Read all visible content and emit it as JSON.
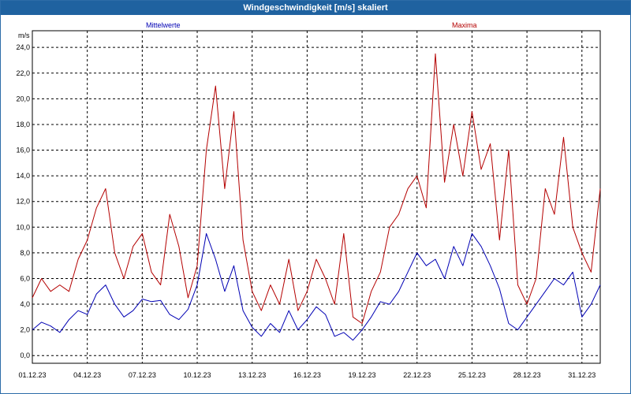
{
  "window": {
    "title": "Windgeschwindigkeit [m/s] skaliert"
  },
  "chart_data": {
    "type": "line",
    "title": "Windgeschwindigkeit [m/s] skaliert",
    "ylabel": "m/s",
    "xlabel": "",
    "ylim": [
      -0.6,
      25.3
    ],
    "xlim": [
      0,
      31
    ],
    "grid": true,
    "y_ticks": [
      "0,0",
      "2,0",
      "4,0",
      "6,0",
      "8,0",
      "10,0",
      "12,0",
      "14,0",
      "16,0",
      "18,0",
      "20,0",
      "22,0",
      "24,0"
    ],
    "y_tick_values": [
      0,
      2,
      4,
      6,
      8,
      10,
      12,
      14,
      16,
      18,
      20,
      22,
      24
    ],
    "x_ticks": [
      "01.12.23",
      "04.12.23",
      "07.12.23",
      "10.12.23",
      "13.12.23",
      "16.12.23",
      "19.12.23",
      "22.12.23",
      "25.12.23",
      "28.12.23",
      "31.12.23"
    ],
    "x_tick_values": [
      0,
      3,
      6,
      9,
      12,
      15,
      18,
      21,
      24,
      27,
      30
    ],
    "series": [
      {
        "name": "Mittelwerte",
        "color": "#0000b4",
        "x": [
          0,
          0.5,
          1,
          1.5,
          2,
          2.5,
          3,
          3.5,
          4,
          4.5,
          5,
          5.5,
          6,
          6.5,
          7,
          7.5,
          8,
          8.5,
          9,
          9.5,
          10,
          10.5,
          11,
          11.5,
          12,
          12.5,
          13,
          13.5,
          14,
          14.5,
          15,
          15.5,
          16,
          16.5,
          17,
          17.5,
          18,
          18.5,
          19,
          19.5,
          20,
          20.5,
          21,
          21.5,
          22,
          22.5,
          23,
          23.5,
          24,
          24.5,
          25,
          25.5,
          26,
          26.5,
          27,
          27.5,
          28,
          28.5,
          29,
          29.5,
          30,
          30.5,
          31
        ],
        "values": [
          2.0,
          2.6,
          2.3,
          1.8,
          2.8,
          3.5,
          3.2,
          4.8,
          5.5,
          4.0,
          3.0,
          3.5,
          4.4,
          4.2,
          4.3,
          3.2,
          2.8,
          3.6,
          5.5,
          9.5,
          7.5,
          5.0,
          7.0,
          3.5,
          2.2,
          1.5,
          2.5,
          1.8,
          3.5,
          2.0,
          2.8,
          3.8,
          3.2,
          1.5,
          1.8,
          1.2,
          2.0,
          3.0,
          4.2,
          4.0,
          5.0,
          6.5,
          8.0,
          7.0,
          7.5,
          6.0,
          8.5,
          7.0,
          9.5,
          8.5,
          7.0,
          5.2,
          2.5,
          2.0,
          3.0,
          4.0,
          5.0,
          6.0,
          5.5,
          6.5,
          3.0,
          4.0,
          5.5
        ]
      },
      {
        "name": "Maxima",
        "color": "#b40000",
        "x": [
          0,
          0.5,
          1,
          1.5,
          2,
          2.5,
          3,
          3.5,
          4,
          4.5,
          5,
          5.5,
          6,
          6.5,
          7,
          7.5,
          8,
          8.5,
          9,
          9.5,
          10,
          10.5,
          11,
          11.5,
          12,
          12.5,
          13,
          13.5,
          14,
          14.5,
          15,
          15.5,
          16,
          16.5,
          17,
          17.5,
          18,
          18.5,
          19,
          19.5,
          20,
          20.5,
          21,
          21.5,
          22,
          22.5,
          23,
          23.5,
          24,
          24.5,
          25,
          25.5,
          26,
          26.5,
          27,
          27.5,
          28,
          28.5,
          29,
          29.5,
          30,
          30.5,
          31
        ],
        "values": [
          4.5,
          6.0,
          5.0,
          5.5,
          5.0,
          7.5,
          9.0,
          11.5,
          13.0,
          8.0,
          6.0,
          8.5,
          9.5,
          6.5,
          5.5,
          11.0,
          8.5,
          4.5,
          7.0,
          16.0,
          21.0,
          13.0,
          19.0,
          9.0,
          5.0,
          3.5,
          5.5,
          4.0,
          7.5,
          3.5,
          5.0,
          7.5,
          6.0,
          4.0,
          9.5,
          3.0,
          2.5,
          5.0,
          6.5,
          10.0,
          11.0,
          13.0,
          14.0,
          11.5,
          23.5,
          13.5,
          18.0,
          14.0,
          19.0,
          14.5,
          16.5,
          9.0,
          16.0,
          5.5,
          4.0,
          6.0,
          13.0,
          11.0,
          17.0,
          10.0,
          8.0,
          6.5,
          13.0
        ]
      }
    ]
  }
}
